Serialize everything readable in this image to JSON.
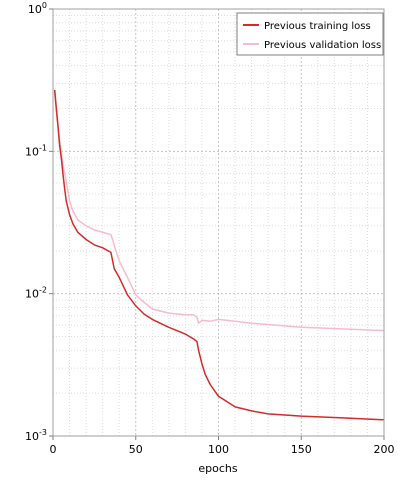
{
  "chart_data": {
    "type": "line",
    "title": "",
    "xlabel": "epochs",
    "ylabel": "",
    "x_ticks": [
      "0",
      "50",
      "100",
      "150",
      "200"
    ],
    "y_ticks": [
      {
        "label_base": "10",
        "label_exp": "0",
        "value": 1
      },
      {
        "label_base": "10",
        "label_exp": "-1",
        "value": 0.1
      },
      {
        "label_base": "10",
        "label_exp": "-2",
        "value": 0.01
      },
      {
        "label_base": "10",
        "label_exp": "-3",
        "value": 0.001
      }
    ],
    "xlim": [
      0,
      200
    ],
    "ylim": [
      0.001,
      1
    ],
    "yscale": "log",
    "grid": true,
    "legend_position": "top-right",
    "series": [
      {
        "name": "Previous training loss",
        "color": "#d42a2a",
        "x": [
          1,
          2,
          3,
          4,
          5,
          6,
          7,
          8,
          10,
          12,
          15,
          20,
          25,
          30,
          35,
          37,
          40,
          45,
          50,
          55,
          60,
          70,
          80,
          85,
          87,
          88,
          90,
          92,
          95,
          100,
          110,
          120,
          130,
          150,
          175,
          200
        ],
        "y": [
          0.27,
          0.2,
          0.15,
          0.11,
          0.09,
          0.07,
          0.055,
          0.045,
          0.036,
          0.031,
          0.027,
          0.024,
          0.022,
          0.021,
          0.0195,
          0.015,
          0.013,
          0.0098,
          0.0082,
          0.0072,
          0.0066,
          0.0058,
          0.0052,
          0.0048,
          0.0046,
          0.004,
          0.0032,
          0.0027,
          0.0023,
          0.0019,
          0.0016,
          0.0015,
          0.00143,
          0.00138,
          0.00134,
          0.0013
        ]
      },
      {
        "name": "Previous validation loss",
        "color": "#f7bccb",
        "x": [
          1,
          2,
          3,
          4,
          5,
          6,
          8,
          10,
          12,
          15,
          20,
          25,
          30,
          35,
          36,
          38,
          40,
          45,
          50,
          55,
          60,
          70,
          80,
          85,
          87,
          88,
          90,
          95,
          100,
          110,
          120,
          150,
          200
        ],
        "y": [
          0.26,
          0.2,
          0.15,
          0.12,
          0.1,
          0.08,
          0.062,
          0.045,
          0.038,
          0.033,
          0.03,
          0.028,
          0.027,
          0.026,
          0.024,
          0.02,
          0.017,
          0.013,
          0.0098,
          0.0087,
          0.0078,
          0.0073,
          0.0071,
          0.0071,
          0.0068,
          0.0062,
          0.0065,
          0.0064,
          0.0066,
          0.0064,
          0.0062,
          0.0058,
          0.0055
        ]
      }
    ]
  }
}
